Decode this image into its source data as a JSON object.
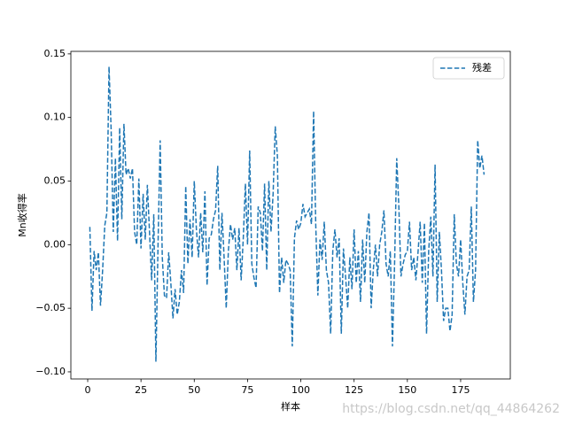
{
  "chart_data": {
    "type": "line",
    "xlabel": "样本",
    "ylabel": "Mn收得率",
    "watermark": "https://blog.csdn.net/qq_44864262",
    "x": [
      1,
      2,
      3,
      4,
      5,
      6,
      7,
      8,
      9,
      10,
      11,
      12,
      13,
      14,
      15,
      16,
      17,
      18,
      19,
      20,
      21,
      22,
      23,
      24,
      25,
      26,
      27,
      28,
      29,
      30,
      31,
      32,
      33,
      34,
      35,
      36,
      37,
      38,
      39,
      40,
      41,
      42,
      43,
      44,
      45,
      46,
      47,
      48,
      49,
      50,
      51,
      52,
      53,
      54,
      55,
      56,
      57,
      58,
      59,
      60,
      61,
      62,
      63,
      64,
      65,
      66,
      67,
      68,
      69,
      70,
      71,
      72,
      73,
      74,
      75,
      76,
      77,
      78,
      79,
      80,
      81,
      82,
      83,
      84,
      85,
      86,
      87,
      88,
      89,
      90,
      91,
      92,
      93,
      94,
      95,
      96,
      97,
      98,
      99,
      100,
      101,
      102,
      103,
      104,
      105,
      106,
      107,
      108,
      109,
      110,
      111,
      112,
      113,
      114,
      115,
      116,
      117,
      118,
      119,
      120,
      121,
      122,
      123,
      124,
      125,
      126,
      127,
      128,
      129,
      130,
      131,
      132,
      133,
      134,
      135,
      136,
      137,
      138,
      139,
      140,
      141,
      142,
      143,
      144,
      145,
      146,
      147,
      148,
      149,
      150,
      151,
      152,
      153,
      154,
      155,
      156,
      157,
      158,
      159,
      160,
      161,
      162,
      163,
      164,
      165,
      166,
      167,
      168,
      169,
      170,
      171,
      172,
      173,
      174,
      175,
      176,
      177,
      178,
      179,
      180,
      181,
      182,
      183,
      184,
      185,
      186
    ],
    "series": [
      {
        "name": "残差",
        "color": "#1f77b4",
        "dashed": true,
        "values": [
          0.014,
          -0.052,
          -0.005,
          -0.02,
          -0.006,
          -0.048,
          -0.02,
          0.015,
          0.025,
          0.14,
          0.09,
          0.01,
          0.068,
          0.003,
          0.092,
          0.02,
          0.095,
          0.055,
          0.06,
          0.052,
          0.06,
          0.01,
          0.0,
          0.052,
          -0.003,
          0.04,
          0.004,
          0.047,
          0.01,
          -0.028,
          0.024,
          -0.092,
          0.0,
          0.082,
          -0.01,
          -0.04,
          -0.042,
          -0.006,
          -0.03,
          -0.058,
          -0.035,
          -0.055,
          -0.045,
          -0.02,
          -0.038,
          0.046,
          -0.015,
          0.02,
          -0.01,
          0.05,
          0.012,
          -0.01,
          0.025,
          -0.006,
          0.042,
          -0.032,
          0.005,
          0.008,
          0.02,
          0.027,
          0.062,
          -0.02,
          0.025,
          -0.01,
          -0.05,
          -0.005,
          0.016,
          0.004,
          0.013,
          -0.02,
          0.013,
          -0.028,
          0.005,
          0.048,
          0.0,
          0.074,
          -0.015,
          -0.026,
          -0.034,
          0.03,
          0.025,
          -0.005,
          0.048,
          -0.02,
          0.05,
          0.01,
          0.04,
          0.093,
          0.07,
          -0.038,
          -0.01,
          -0.03,
          -0.012,
          -0.015,
          -0.02,
          -0.08,
          0.005,
          0.019,
          0.012,
          0.017,
          0.032,
          0.022,
          0.025,
          0.028,
          0.016,
          0.105,
          0.016,
          -0.04,
          0.004,
          -0.012,
          0.018,
          -0.02,
          -0.03,
          -0.07,
          -0.005,
          0.012,
          -0.01,
          0.005,
          -0.07,
          -0.003,
          -0.025,
          -0.05,
          -0.01,
          -0.035,
          0.012,
          -0.03,
          -0.005,
          -0.045,
          0.004,
          -0.03,
          0.01,
          0.025,
          -0.05,
          -0.02,
          0.0,
          -0.025,
          0.0,
          0.01,
          0.027,
          -0.015,
          -0.025,
          -0.005,
          -0.08,
          -0.015,
          0.068,
          0.03,
          -0.025,
          -0.015,
          -0.008,
          -0.005,
          0.018,
          -0.02,
          -0.01,
          -0.028,
          -0.006,
          0.018,
          -0.03,
          0.017,
          -0.07,
          -0.005,
          0.022,
          -0.025,
          0.063,
          -0.045,
          0.01,
          -0.02,
          -0.06,
          -0.05,
          -0.05,
          -0.068,
          -0.055,
          0.024,
          -0.015,
          -0.025,
          0.004,
          -0.03,
          -0.055,
          -0.025,
          -0.02,
          0.03,
          -0.045,
          -0.02,
          0.082,
          0.06,
          0.07,
          0.055
        ]
      }
    ],
    "xlim": [
      -7.9,
      198.3
    ],
    "ylim": [
      -0.1056,
      0.152
    ],
    "xticks": [
      0,
      25,
      50,
      75,
      100,
      125,
      150,
      175
    ],
    "yticks": [
      {
        "value": -0.1,
        "label": "−0.10"
      },
      {
        "value": -0.05,
        "label": "−0.05"
      },
      {
        "value": 0,
        "label": "0.00"
      },
      {
        "value": 0.05,
        "label": "0.05"
      },
      {
        "value": 0.1,
        "label": "0.10"
      },
      {
        "value": 0.15,
        "label": "0.15"
      }
    ],
    "legend": "upper right"
  }
}
